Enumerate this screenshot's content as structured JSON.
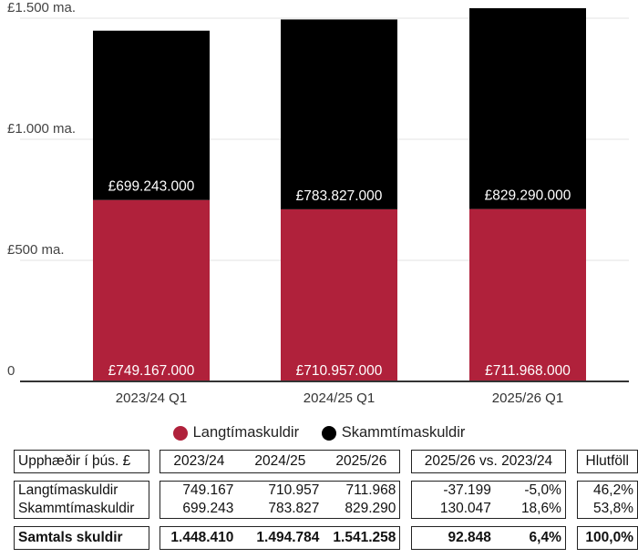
{
  "chart_data": {
    "type": "bar",
    "stacked": true,
    "categories": [
      "2023/24 Q1",
      "2024/25 Q1",
      "2025/26 Q1"
    ],
    "series": [
      {
        "name": "Langtímaskuldir",
        "color": "#b0213b",
        "values": [
          749167000,
          710957000,
          711968000
        ],
        "labels": [
          "£749.167.000",
          "£710.957.000",
          "£711.968.000"
        ]
      },
      {
        "name": "Skammtímaskuldir",
        "color": "#000000",
        "values": [
          699243000,
          783827000,
          829290000
        ],
        "labels": [
          "£699.243.000",
          "£783.827.000",
          "£829.290.000"
        ]
      }
    ],
    "ylim": [
      0,
      1500000000
    ],
    "yticks": [
      0,
      500000000,
      1000000000,
      1500000000
    ],
    "ytick_labels": [
      "0",
      "£500 ma.",
      "£1.000 ma.",
      "£1.500 ma."
    ],
    "grid": true,
    "legend_position": "bottom"
  },
  "legend": {
    "item1": "Langtímaskuldir",
    "item2": "Skammtímaskuldir"
  },
  "table": {
    "header": {
      "label": "Upphæðir í þús. £",
      "y1": "2023/24",
      "y2": "2024/25",
      "y3": "2025/26",
      "comparison": "2025/26 vs. 2023/24",
      "share": "Hlutföll"
    },
    "rows": [
      {
        "label": "Langtímaskuldir",
        "y1": "749.167",
        "y2": "710.957",
        "y3": "711.968",
        "diff": "-37.199",
        "pct": "-5,0%",
        "share": "46,2%"
      },
      {
        "label": "Skammtímaskuldir",
        "y1": "699.243",
        "y2": "783.827",
        "y3": "829.290",
        "diff": "130.047",
        "pct": "18,6%",
        "share": "53,8%"
      }
    ],
    "total": {
      "label": "Samtals skuldir",
      "y1": "1.448.410",
      "y2": "1.494.784",
      "y3": "1.541.258",
      "diff": "92.848",
      "pct": "6,4%",
      "share": "100,0%"
    }
  }
}
